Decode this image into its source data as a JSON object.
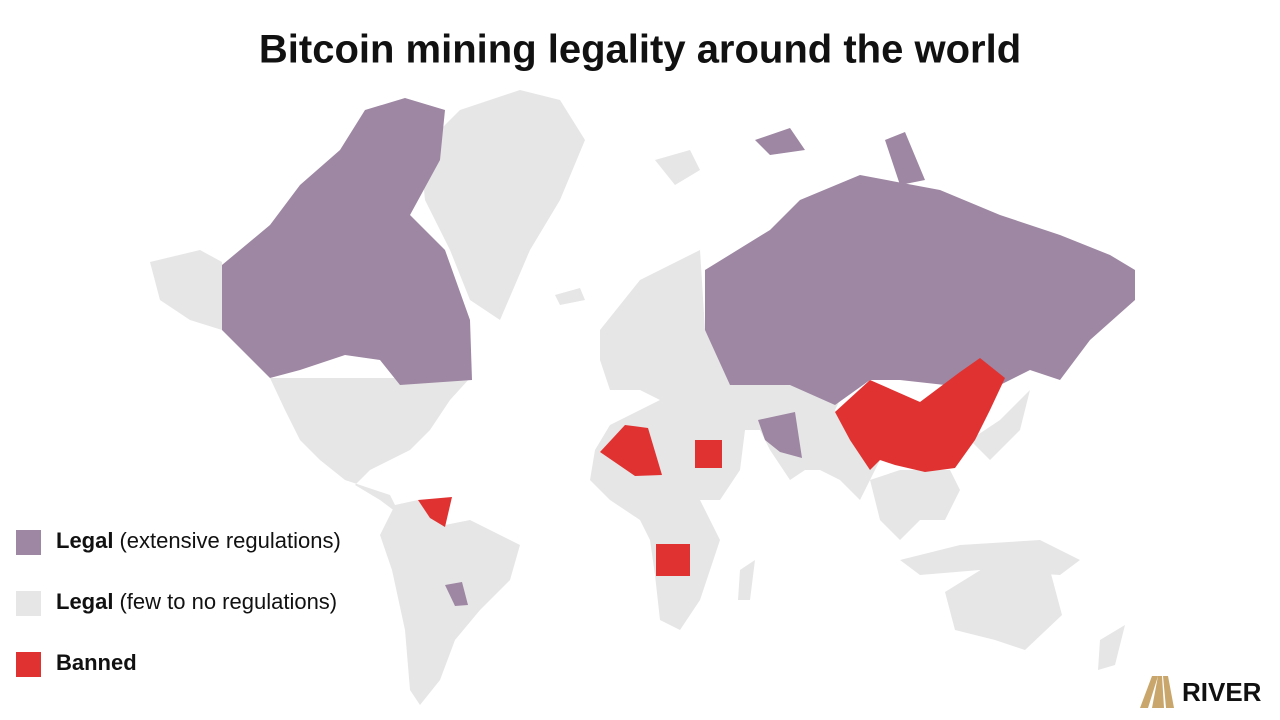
{
  "title": "Bitcoin mining legality around the world",
  "legend": [
    {
      "label": "Legal",
      "note": "(extensive regulations)",
      "color": "#9e87a3"
    },
    {
      "label": "Legal",
      "note": "(few to no regulations)",
      "color": "#e6e6e6"
    },
    {
      "label": "Banned",
      "color": "#e13232"
    }
  ],
  "brand": "RIVER"
}
